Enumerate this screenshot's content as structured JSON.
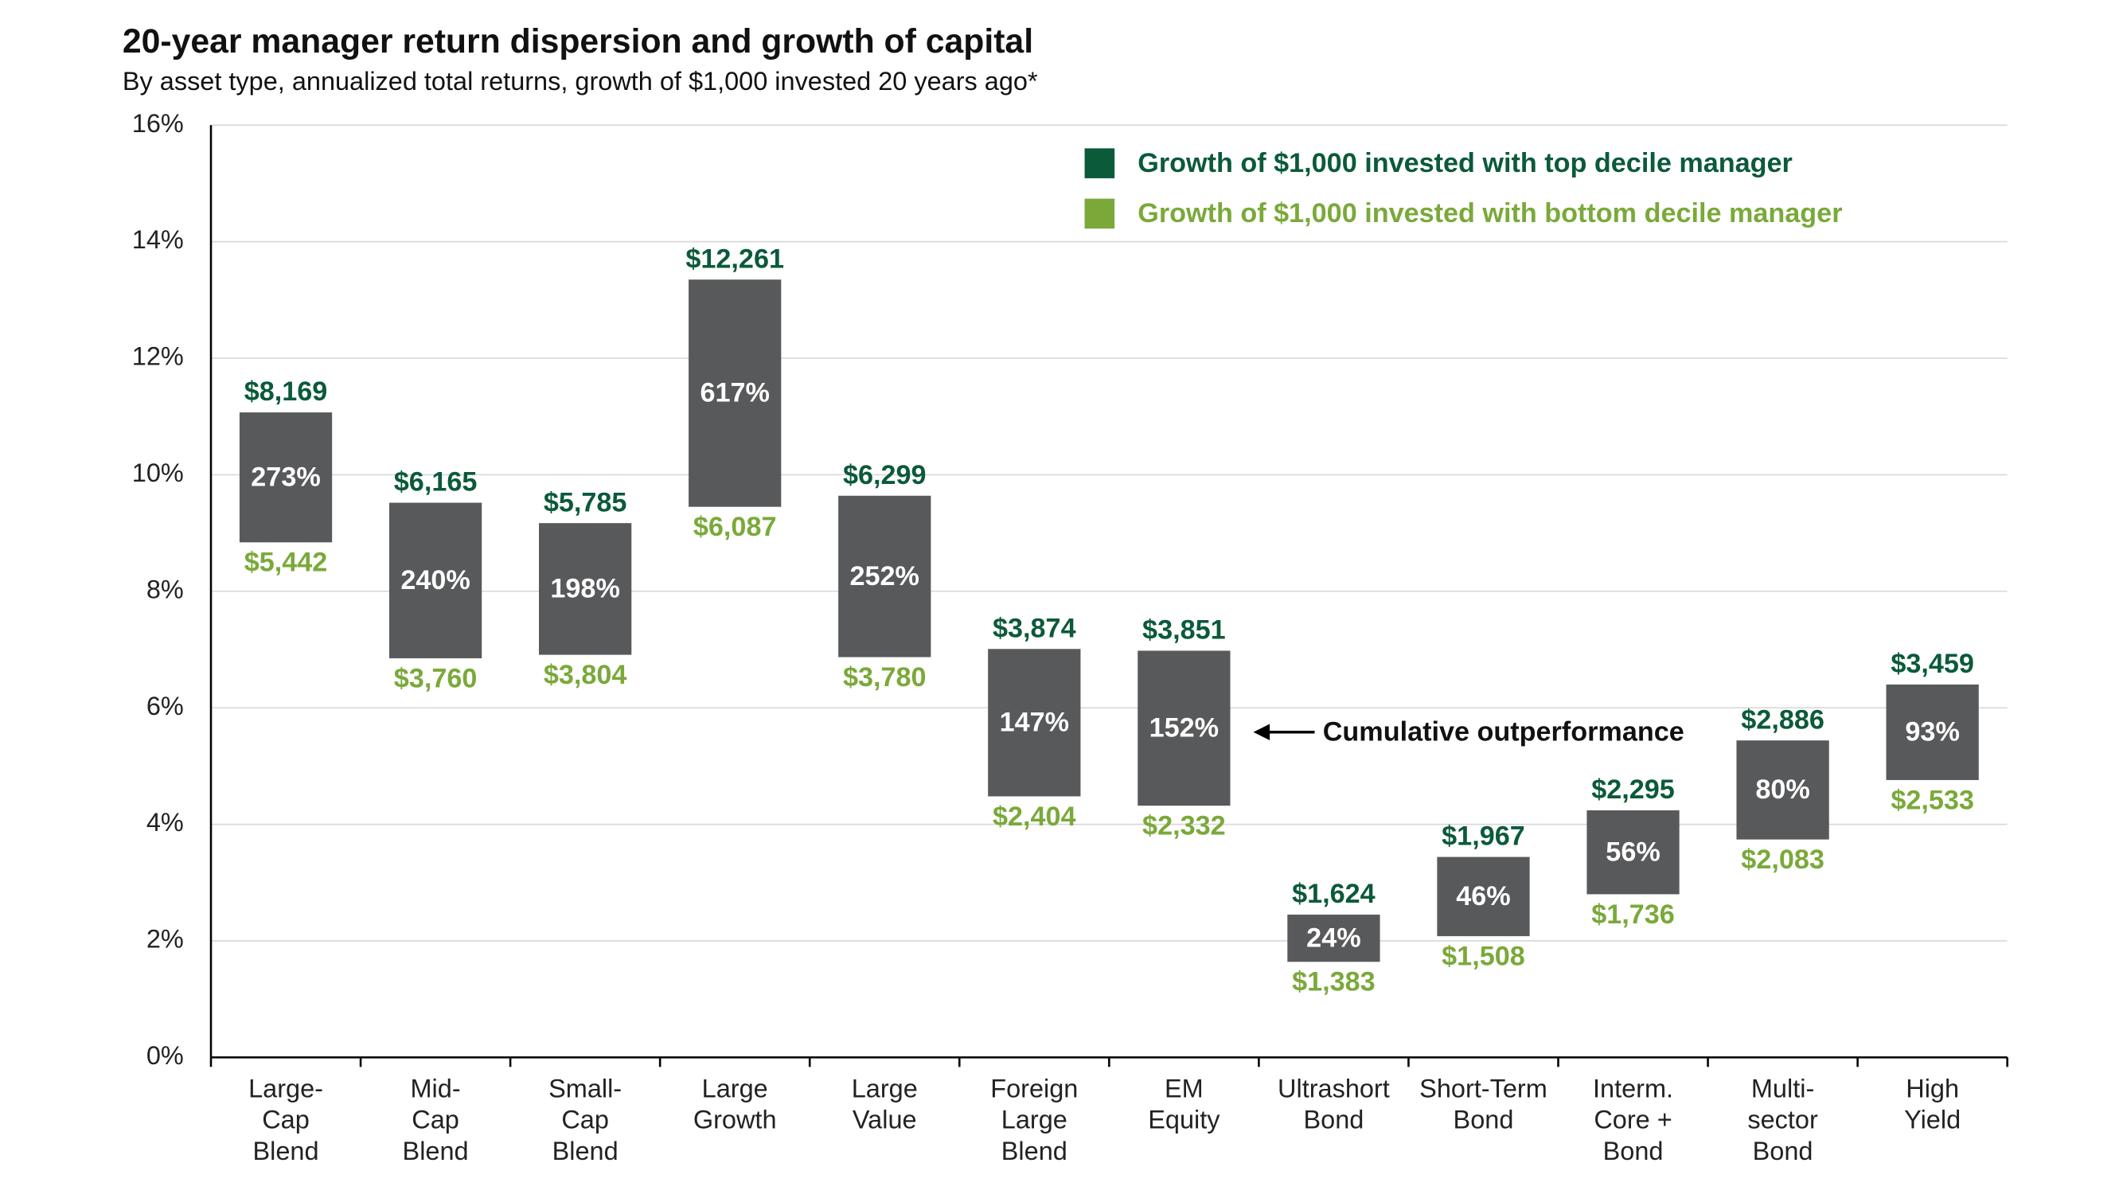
{
  "chart_data": {
    "type": "range_bar",
    "title": "20-year manager return dispersion and growth of capital",
    "subtitle": "By asset type, annualized total returns, growth of $1,000 invested 20 years ago*",
    "categories": [
      [
        "Large-",
        "Cap",
        "Blend"
      ],
      [
        "Mid-",
        "Cap",
        "Blend"
      ],
      [
        "Small-",
        "Cap",
        "Blend"
      ],
      [
        "Large",
        "Growth"
      ],
      [
        "Large",
        "Value"
      ],
      [
        "Foreign",
        "Large",
        "Blend"
      ],
      [
        "EM",
        "Equity"
      ],
      [
        "Ultrashort",
        "Bond"
      ],
      [
        "Short-Term",
        "Bond"
      ],
      [
        "Interm.",
        "Core +",
        "Bond"
      ],
      [
        "Multi-",
        "sector",
        "Bond"
      ],
      [
        "High",
        "Yield"
      ]
    ],
    "ylim": [
      0,
      16
    ],
    "yticks": [
      {
        "value": 0,
        "label": "0%"
      },
      {
        "value": 2,
        "label": "2%"
      },
      {
        "value": 4,
        "label": "4%"
      },
      {
        "value": 6,
        "label": "6%"
      },
      {
        "value": 8,
        "label": "8%"
      },
      {
        "value": 10,
        "label": "10%"
      },
      {
        "value": 12,
        "label": "12%"
      },
      {
        "value": 14,
        "label": "14%"
      },
      {
        "value": 16,
        "label": "16%"
      }
    ],
    "grid": true,
    "bar_color": "#58595b",
    "high": [
      11.07,
      9.52,
      9.17,
      13.35,
      9.64,
      7.01,
      6.98,
      2.45,
      3.44,
      4.24,
      5.44,
      6.4
    ],
    "low": [
      8.84,
      6.85,
      6.91,
      9.45,
      6.87,
      4.48,
      4.32,
      1.64,
      2.08,
      2.8,
      3.74,
      4.76
    ],
    "series": [
      {
        "name": "Growth of $1,000 invested with top decile manager",
        "color": "#0b5a3a",
        "values": [
          8169,
          6165,
          5785,
          12261,
          6299,
          3874,
          3851,
          1624,
          1967,
          2295,
          2886,
          3459
        ],
        "value_labels": [
          "$8,169",
          "$6,165",
          "$5,785",
          "$12,261",
          "$6,299",
          "$3,874",
          "$3,851",
          "$1,624",
          "$1,967",
          "$2,295",
          "$2,886",
          "$3,459"
        ]
      },
      {
        "name": "Growth of $1,000 invested with bottom decile manager",
        "color": "#7aa93a",
        "values": [
          5442,
          3760,
          3804,
          6087,
          3780,
          2404,
          2332,
          1383,
          1508,
          1736,
          2083,
          2533
        ],
        "value_labels": [
          "$5,442",
          "$3,760",
          "$3,804",
          "$6,087",
          "$3,780",
          "$2,404",
          "$2,332",
          "$1,383",
          "$1,508",
          "$1,736",
          "$2,083",
          "$2,533"
        ]
      }
    ],
    "outperformance": {
      "values": [
        273,
        240,
        198,
        617,
        252,
        147,
        152,
        24,
        46,
        56,
        80,
        93
      ],
      "value_labels": [
        "273%",
        "240%",
        "198%",
        "617%",
        "252%",
        "147%",
        "152%",
        "24%",
        "46%",
        "56%",
        "80%",
        "93%"
      ]
    },
    "annotation": "Cumulative outperformance"
  }
}
